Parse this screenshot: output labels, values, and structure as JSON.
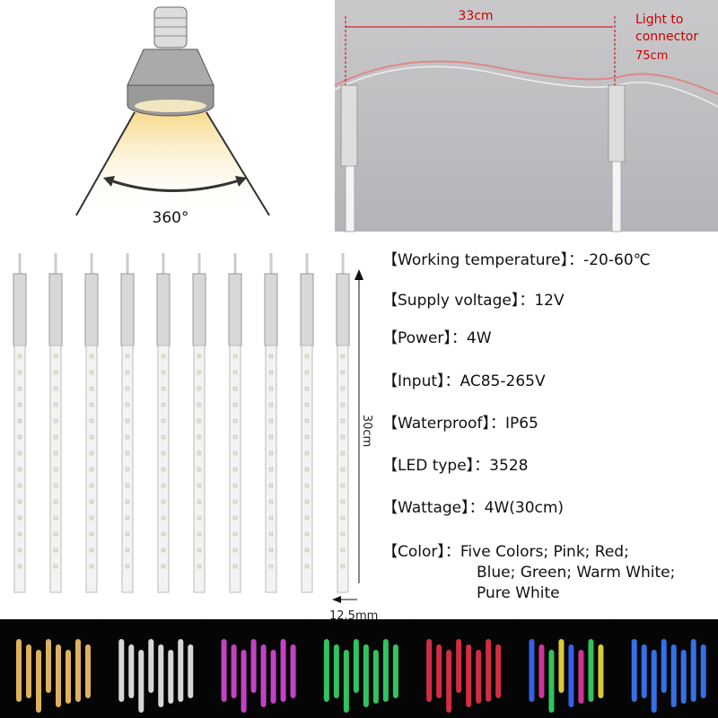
{
  "top_left": {
    "angle": "360°"
  },
  "top_right": {
    "spacing": "33cm",
    "connector_label": [
      "Light to",
      "connector"
    ],
    "connector_length": "75cm"
  },
  "tubes": {
    "length": "30cm",
    "diameter": "12.5mm"
  },
  "specs": [
    {
      "label": "【Working temperature】",
      "value": "：-20-60℃"
    },
    {
      "label": "【Supply voltage】",
      "value": "：12V"
    },
    {
      "label": "【Power】",
      "value": "：4W"
    },
    {
      "label": "【Input】",
      "value": "：AC85-265V"
    },
    {
      "label": "【Waterproof】",
      "value": "：IP65"
    },
    {
      "label": "【LED type】",
      "value": "：3528"
    },
    {
      "label": "【Wattage】",
      "value": "：4W(30cm)"
    },
    {
      "label": "【Color】",
      "value": [
        "：Five Colors; Pink; Red;",
        "Blue; Green; Warm White;",
        "Pure White"
      ]
    }
  ]
}
